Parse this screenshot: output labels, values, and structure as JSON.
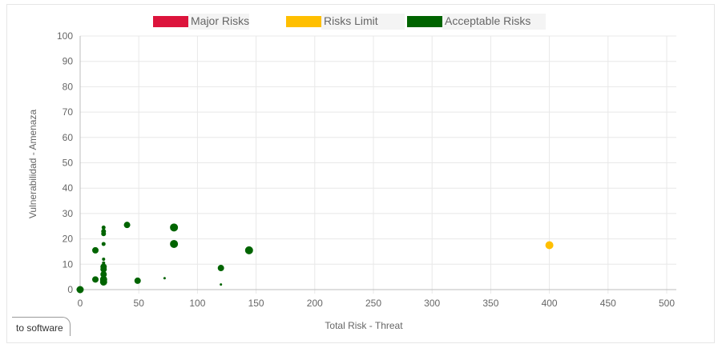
{
  "chart_data": {
    "type": "scatter",
    "xlabel": "Total Risk - Threat",
    "ylabel": "Vulnerabilidad - Amenaza",
    "xlim": [
      0,
      500
    ],
    "ylim": [
      0,
      100
    ],
    "x_ticks": [
      "0",
      "50",
      "100",
      "150",
      "200",
      "250",
      "300",
      "350",
      "400",
      "450",
      "500"
    ],
    "y_ticks": [
      "0",
      "10",
      "20",
      "30",
      "40",
      "50",
      "60",
      "70",
      "80",
      "90",
      "100"
    ],
    "grid": true,
    "legend_position": "top",
    "series": [
      {
        "name": "Major Risks",
        "color": "#dc143c",
        "points": []
      },
      {
        "name": "Risks Limit",
        "color": "#ffbf00",
        "points": [
          {
            "x": 400,
            "y": 17.5,
            "size": 9
          }
        ]
      },
      {
        "name": "Acceptable Risks",
        "color": "#006400",
        "points": [
          {
            "x": 0,
            "y": 0,
            "size": 8
          },
          {
            "x": 13,
            "y": 15.5,
            "size": 7
          },
          {
            "x": 13,
            "y": 4,
            "size": 7
          },
          {
            "x": 20,
            "y": 24.5,
            "size": 4
          },
          {
            "x": 20,
            "y": 23,
            "size": 5
          },
          {
            "x": 20,
            "y": 22,
            "size": 5
          },
          {
            "x": 20,
            "y": 18,
            "size": 4
          },
          {
            "x": 20,
            "y": 12,
            "size": 3
          },
          {
            "x": 20,
            "y": 10.5,
            "size": 3
          },
          {
            "x": 20,
            "y": 9,
            "size": 7
          },
          {
            "x": 20,
            "y": 8,
            "size": 7
          },
          {
            "x": 20,
            "y": 6,
            "size": 7
          },
          {
            "x": 20,
            "y": 4,
            "size": 8
          },
          {
            "x": 20,
            "y": 3,
            "size": 8
          },
          {
            "x": 40,
            "y": 25.5,
            "size": 7
          },
          {
            "x": 49,
            "y": 3.5,
            "size": 7
          },
          {
            "x": 72,
            "y": 4.5,
            "size": 2
          },
          {
            "x": 80,
            "y": 24.5,
            "size": 9
          },
          {
            "x": 80,
            "y": 18,
            "size": 9
          },
          {
            "x": 120,
            "y": 8.5,
            "size": 7
          },
          {
            "x": 120,
            "y": 2,
            "size": 2
          },
          {
            "x": 144,
            "y": 15.5,
            "size": 9
          }
        ]
      }
    ]
  },
  "legend": {
    "items": [
      {
        "label": "Major Risks",
        "color": "#dc143c"
      },
      {
        "label": "Risks Limit",
        "color": "#ffbf00"
      },
      {
        "label": "Acceptable Risks",
        "color": "#006400"
      }
    ]
  },
  "tab": {
    "label": "to software"
  }
}
